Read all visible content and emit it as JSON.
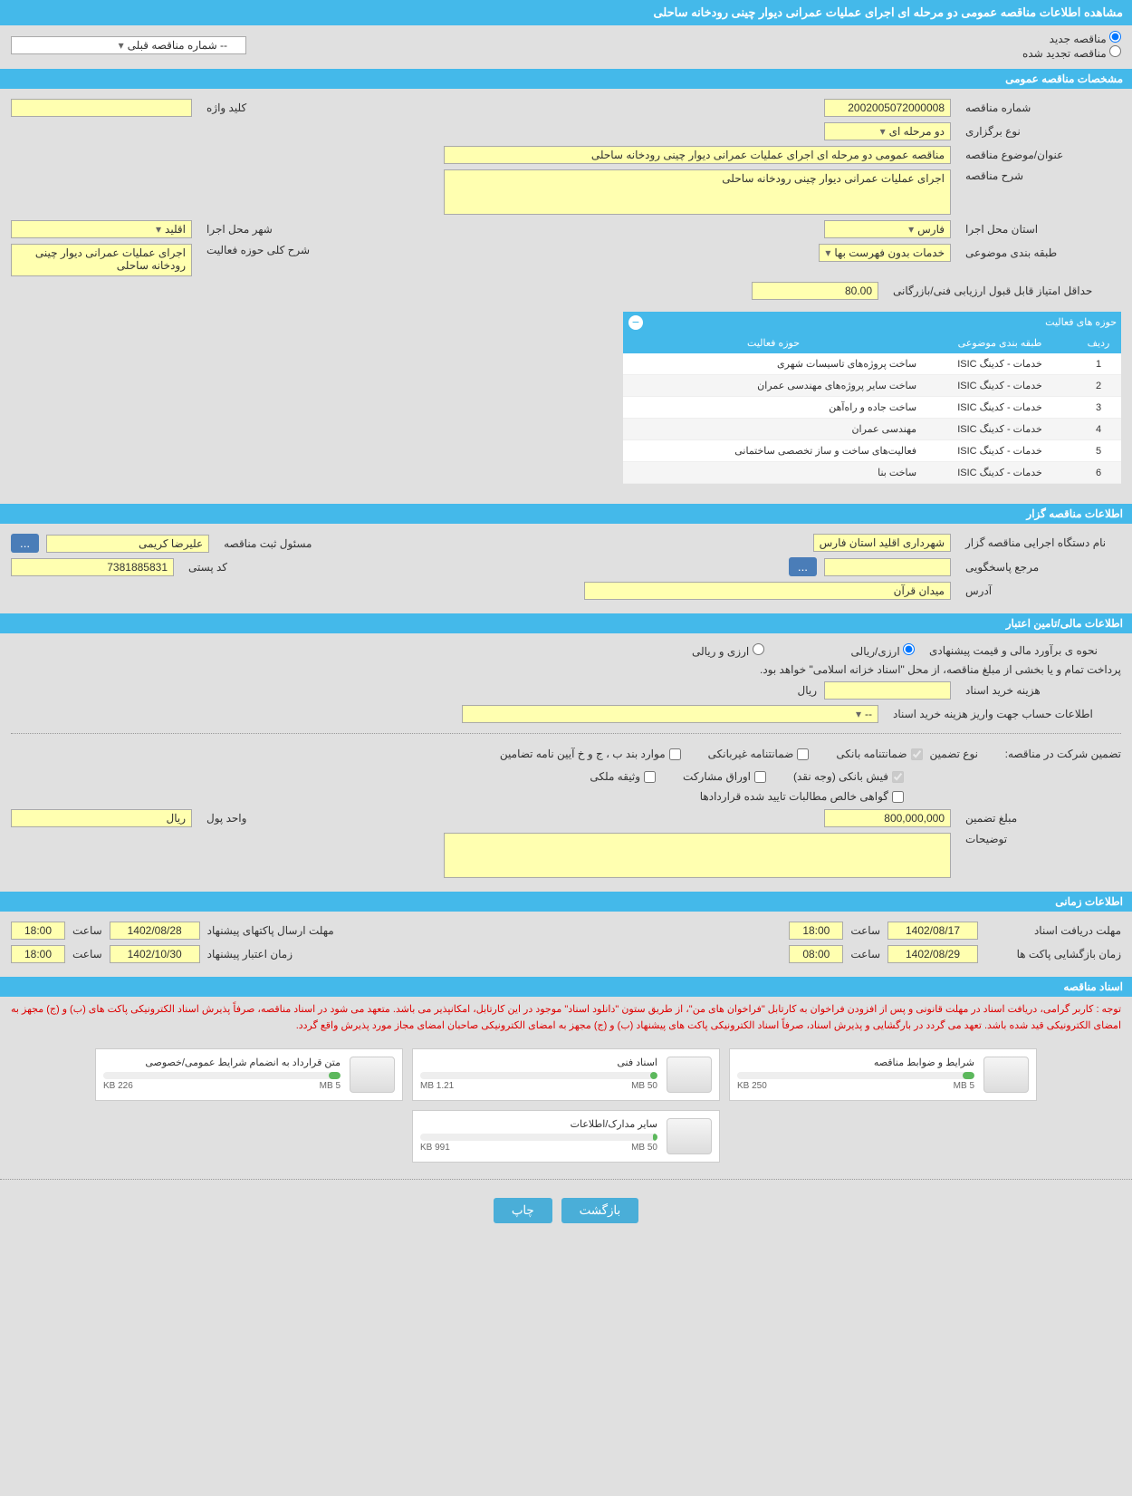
{
  "page_title": "مشاهده اطلاعات مناقصه عمومی دو مرحله ای اجرای عملیات عمرانی دیوار چینی رودخانه ساحلی",
  "tender_type": {
    "new_label": "مناقصه جدید",
    "renewed_label": "مناقصه تجدید شده",
    "prev_tender_label": "-- شماره مناقصه قبلی"
  },
  "sections": {
    "general": "مشخصات مناقصه عمومی",
    "organizer": "اطلاعات مناقصه گزار",
    "financial": "اطلاعات مالی/تامین اعتبار",
    "timing": "اطلاعات زمانی",
    "documents": "اسناد مناقصه"
  },
  "general": {
    "tender_number_label": "شماره مناقصه",
    "tender_number": "2002005072000008",
    "keyword_label": "کلید واژه",
    "keyword": "",
    "holding_type_label": "نوع برگزاری",
    "holding_type": "دو مرحله ای",
    "subject_label": "عنوان/موضوع مناقصه",
    "subject": "مناقصه عمومی دو مرحله ای اجرای عملیات عمرانی دیوار چینی رودخانه ساحلی",
    "description_label": "شرح مناقصه",
    "description": "اجرای عملیات عمرانی دیوار چینی رودخانه ساحلی",
    "province_label": "استان محل اجرا",
    "province": "فارس",
    "city_label": "شهر محل اجرا",
    "city": "اقلید",
    "category_label": "طبقه بندی موضوعی",
    "category": "خدمات بدون فهرست بها",
    "activity_desc_label": "شرح کلی حوزه فعالیت",
    "activity_desc": "اجرای عملیات عمرانی دیوار چینی رودخانه ساحلی",
    "min_score_label": "حداقل امتیاز قابل قبول ارزیابی فنی/بازرگانی",
    "min_score": "80.00"
  },
  "activity_table": {
    "title": "حوزه های فعالیت",
    "col_row": "ردیف",
    "col_category": "طبقه بندی موضوعی",
    "col_activity": "حوزه فعالیت",
    "rows": [
      {
        "n": "1",
        "cat": "خدمات - کدینگ ISIC",
        "act": "ساخت پروژه‌های تاسیسات شهری"
      },
      {
        "n": "2",
        "cat": "خدمات - کدینگ ISIC",
        "act": "ساخت سایر پروژه‌های مهندسی عمران"
      },
      {
        "n": "3",
        "cat": "خدمات - کدینگ ISIC",
        "act": "ساخت جاده و راه‌آهن"
      },
      {
        "n": "4",
        "cat": "خدمات - کدینگ ISIC",
        "act": "مهندسی عمران"
      },
      {
        "n": "5",
        "cat": "خدمات - کدینگ ISIC",
        "act": "فعالیت‌های ساخت و ساز تخصصی ساختمانی"
      },
      {
        "n": "6",
        "cat": "خدمات - کدینگ ISIC",
        "act": "ساخت بنا"
      }
    ]
  },
  "organizer": {
    "org_name_label": "نام دستگاه اجرایی مناقصه گزار",
    "org_name": "شهرداری اقلید استان فارس",
    "registrar_label": "مسئول ثبت مناقصه",
    "registrar": "علیرضا کریمی",
    "contact_label": "مرجع پاسخگویی",
    "contact": "",
    "postal_label": "کد پستی",
    "postal": "7381885831",
    "address_label": "آدرس",
    "address": "میدان قرآن",
    "more_btn": "..."
  },
  "financial": {
    "estimate_label": "نحوه ی برآورد مالی و قیمت پیشنهادی",
    "rial_currency": "ارزی/ریالی",
    "foreign_rial": "ارزی و ریالی",
    "payment_note": "پرداخت تمام و یا بخشی از مبلغ مناقصه، از محل \"اسناد خزانه اسلامی\" خواهد بود.",
    "purchase_cost_label": "هزینه خرید اسناد",
    "purchase_cost": "",
    "currency_rial": "ریال",
    "account_info_label": "اطلاعات حساب جهت واریز هزینه خرید اسناد",
    "account_info": "--",
    "guarantee_title": "تضمین شرکت در مناقصه:",
    "guarantee_type_label": "نوع تضمین",
    "bank_guarantee": "ضمانتنامه بانکی",
    "nonbank_guarantee": "ضمانتنامه غیربانکی",
    "items_bpj": "موارد بند ب ، ج و خ آیین نامه تضامین",
    "bank_receipt": "فیش بانکی (وجه نقد)",
    "participation_bonds": "اوراق مشارکت",
    "property_deposit": "وثیقه ملکی",
    "contract_receivables": "گواهی خالص مطالبات تایید شده قراردادها",
    "guarantee_amount_label": "مبلغ تضمین",
    "guarantee_amount": "800,000,000",
    "currency_unit_label": "واحد پول",
    "currency_unit": "ریال",
    "notes_label": "توضیحات",
    "notes": ""
  },
  "timing": {
    "receive_deadline_label": "مهلت دریافت اسناد",
    "receive_deadline_date": "1402/08/17",
    "receive_deadline_time": "18:00",
    "send_deadline_label": "مهلت ارسال پاکتهای پیشنهاد",
    "send_deadline_date": "1402/08/28",
    "send_deadline_time": "18:00",
    "opening_label": "زمان بازگشایی پاکت ها",
    "opening_date": "1402/08/29",
    "opening_time": "08:00",
    "validity_label": "زمان اعتبار پیشنهاد",
    "validity_date": "1402/10/30",
    "validity_time": "18:00",
    "time_label": "ساعت"
  },
  "documents": {
    "notice": "توجه : کاربر گرامی، دریافت اسناد در مهلت قانونی و پس از افزودن فراخوان به کارتابل \"فراخوان های من\"، از طریق ستون \"دانلود اسناد\" موجود در این کارتابل، امکانپذیر می باشد.\nمتعهد می شود در اسناد مناقصه، صرفاً پذیرش اسناد الکترونیکی پاکت های (ب) و (ج) مجهز به امضای الکترونیکی قید شده باشد. تعهد می گردد در بارگشایی و پذیرش اسناد، صرفاً اسناد الکترونیکی پاکت های پیشنهاد (ب) و (ج) مجهز به امضای الکترونیکی صاحبان امضای مجاز مورد پذیرش واقع گردد.",
    "items": [
      {
        "title": "شرایط و ضوابط مناقصه",
        "used": "250 KB",
        "total": "5 MB",
        "pct": 5
      },
      {
        "title": "اسناد فنی",
        "used": "1.21 MB",
        "total": "50 MB",
        "pct": 3
      },
      {
        "title": "متن قرارداد به انضمام شرایط عمومی/خصوصی",
        "used": "226 KB",
        "total": "5 MB",
        "pct": 5
      },
      {
        "title": "سایر مدارک/اطلاعات",
        "used": "991 KB",
        "total": "50 MB",
        "pct": 2
      }
    ]
  },
  "buttons": {
    "back": "بازگشت",
    "print": "چاپ"
  }
}
